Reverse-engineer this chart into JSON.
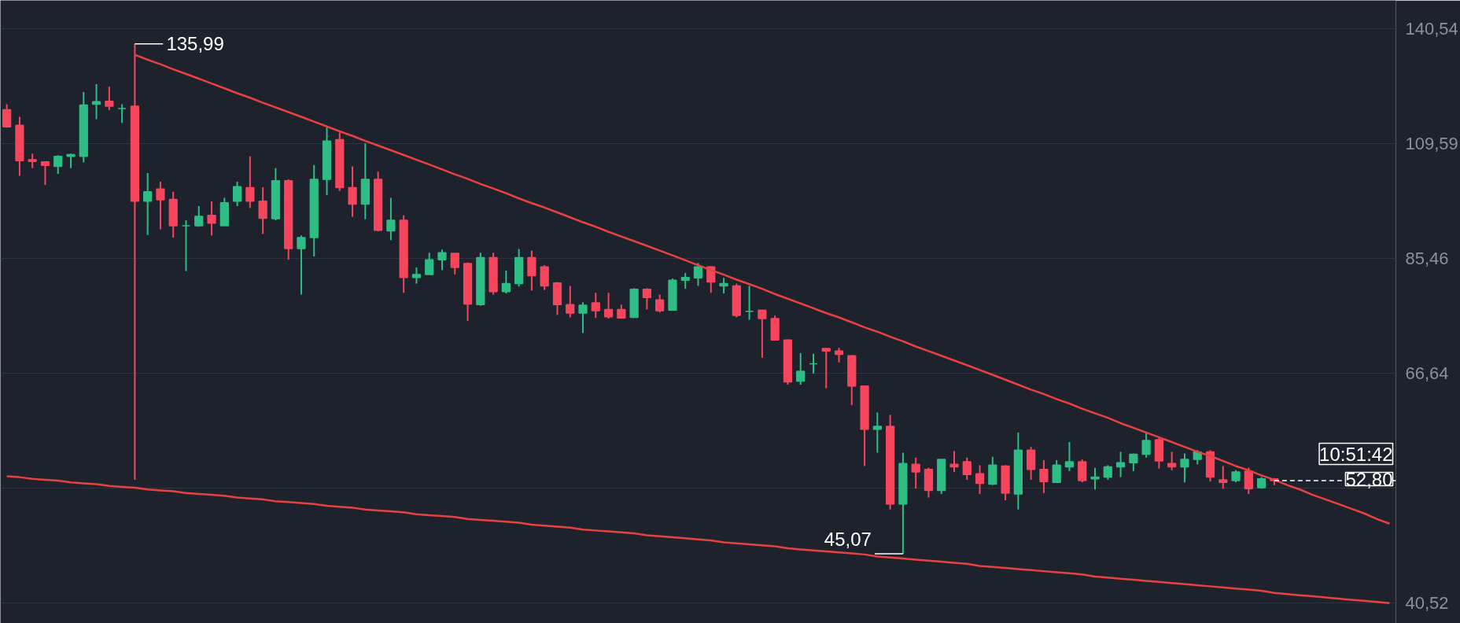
{
  "chart_data": {
    "type": "candlestick",
    "categories": [
      null,
      null,
      null,
      null,
      null,
      null,
      null,
      null,
      null,
      null,
      null,
      null,
      null,
      null,
      null,
      null,
      null,
      null,
      null,
      null,
      null,
      null,
      null,
      null,
      null,
      null,
      null,
      null,
      null,
      null,
      null,
      null,
      null,
      null,
      null,
      null,
      null,
      null,
      null,
      null,
      null,
      null,
      null,
      null,
      null,
      null,
      null,
      null,
      null,
      null,
      null,
      null,
      null,
      null,
      null,
      null,
      null,
      null,
      null,
      null,
      null,
      null,
      null,
      null,
      null,
      null,
      null,
      null,
      null,
      null,
      null,
      null,
      null,
      null,
      null,
      null,
      null,
      null,
      null,
      null,
      null,
      null,
      null,
      null,
      null,
      null,
      null,
      null,
      null,
      null,
      null,
      null,
      null,
      null,
      null,
      null,
      null,
      null,
      null,
      null,
      null,
      null,
      null,
      null,
      null,
      null,
      null,
      null,
      null
    ],
    "colors": [
      "#f6465d",
      "#f6465d",
      "#f6465d",
      "#f6465d",
      "#2ebd85",
      "#2ebd85",
      "#2ebd85",
      "#2ebd85",
      "#f6465d",
      "#2ebd85",
      "#f6465d",
      "#2ebd85",
      "#f6465d",
      "#f6465d",
      "#2ebd85",
      "#2ebd85",
      "#f6465d",
      "#2ebd85",
      "#2ebd85",
      "#f6465d",
      "#f6465d",
      "#2ebd85",
      "#f6465d",
      "#2ebd85",
      "#2ebd85",
      "#2ebd85",
      "#f6465d",
      "#f6465d",
      "#2ebd85",
      "#f6465d",
      "#2ebd85",
      "#f6465d",
      "#2ebd85",
      "#2ebd85",
      "#2ebd85",
      "#f6465d",
      "#f6465d",
      "#2ebd85",
      "#f6465d",
      "#2ebd85",
      "#2ebd85",
      "#f6465d",
      "#f6465d",
      "#f6465d",
      "#f6465d",
      "#2ebd85",
      "#f6465d",
      "#f6465d",
      "#f6465d",
      "#2ebd85",
      "#f6465d",
      "#f6465d",
      "#2ebd85",
      "#2ebd85",
      "#2ebd85",
      "#f6465d",
      "#2ebd85",
      "#f6465d",
      "#2ebd85",
      "#f6465d",
      "#f6465d",
      "#f6465d",
      "#2ebd85",
      "#2ebd85",
      "#f6465d",
      "#f6465d",
      "#f6465d",
      "#f6465d",
      "#2ebd85",
      "#f6465d",
      "#2ebd85",
      "#f6465d",
      "#f6465d",
      "#2ebd85",
      "#f6465d",
      "#f6465d",
      "#f6465d",
      "#2ebd85",
      "#f6465d",
      "#2ebd85",
      "#f6465d",
      "#f6465d",
      "#2ebd85",
      "#2ebd85",
      "#f6465d",
      "#2ebd85",
      "#2ebd85",
      "#2ebd85",
      "#2ebd85",
      "#2ebd85",
      "#f6465d",
      "#f6465d",
      "#2ebd85",
      "#2ebd85",
      "#f6465d",
      "#f6465d",
      "#2ebd85",
      "#f6465d",
      "#2ebd85",
      "#f6465d",
      null,
      null,
      null,
      null,
      null,
      null,
      null,
      null,
      null
    ],
    "ohlc": [
      [
        117.9,
        119.3,
        113.4,
        113.6
      ],
      [
        114.0,
        116.1,
        102.2,
        105.6
      ],
      [
        105.8,
        107.2,
        103.9,
        105.4
      ],
      [
        105.3,
        105.4,
        100.2,
        104.5
      ],
      [
        104.3,
        106.8,
        102.6,
        106.6
      ],
      [
        106.6,
        107.2,
        103.9,
        107.0
      ],
      [
        106.6,
        122.5,
        105.2,
        119.1
      ],
      [
        119.3,
        124.6,
        115.5,
        120.0
      ],
      [
        120.1,
        123.9,
        117.8,
        118.8
      ],
      [
        118.2,
        119.3,
        114.6,
        118.2
      ],
      [
        118.8,
        135.99,
        52.9,
        96.7
      ],
      [
        96.7,
        102.8,
        89.9,
        98.7
      ],
      [
        99.3,
        100.9,
        91.0,
        97.0
      ],
      [
        97.1,
        98.7,
        89.4,
        91.7
      ],
      [
        91.7,
        92.8,
        83.1,
        91.7
      ],
      [
        91.7,
        95.7,
        91.5,
        93.6
      ],
      [
        93.8,
        96.7,
        89.8,
        92.2
      ],
      [
        91.7,
        97.4,
        91.7,
        96.4
      ],
      [
        96.7,
        100.9,
        95.7,
        99.8
      ],
      [
        99.6,
        106.6,
        95.3,
        96.7
      ],
      [
        96.7,
        99.7,
        90.1,
        93.2
      ],
      [
        93.1,
        103.9,
        92.8,
        101.1
      ],
      [
        101.1,
        101.4,
        85.2,
        87.3
      ],
      [
        87.3,
        89.8,
        79.0,
        89.4
      ],
      [
        89.4,
        104.6,
        85.8,
        101.4
      ],
      [
        101.4,
        113.4,
        98.0,
        110.2
      ],
      [
        110.5,
        112.2,
        98.9,
        99.6
      ],
      [
        99.6,
        104.3,
        93.5,
        96.1
      ],
      [
        96.1,
        109.6,
        93.0,
        101.4
      ],
      [
        101.4,
        103.1,
        90.6,
        90.8
      ],
      [
        90.7,
        97.4,
        88.9,
        92.8
      ],
      [
        92.8,
        93.8,
        79.3,
        82.0
      ],
      [
        82.0,
        83.8,
        80.9,
        82.5
      ],
      [
        82.5,
        86.5,
        82.5,
        85.2
      ],
      [
        85.2,
        87.1,
        83.3,
        86.5
      ],
      [
        86.4,
        86.4,
        82.5,
        83.8
      ],
      [
        84.5,
        84.7,
        74.6,
        77.4
      ],
      [
        77.3,
        86.5,
        77.1,
        85.6
      ],
      [
        85.6,
        86.5,
        79.0,
        79.5
      ],
      [
        79.5,
        83.2,
        79.2,
        80.9
      ],
      [
        80.9,
        87.2,
        80.4,
        85.6
      ],
      [
        85.6,
        86.9,
        79.7,
        82.3
      ],
      [
        83.9,
        84.2,
        79.8,
        80.5
      ],
      [
        81.0,
        81.2,
        75.6,
        77.3
      ],
      [
        77.3,
        80.5,
        75.2,
        75.9
      ],
      [
        75.9,
        77.7,
        72.7,
        77.2
      ],
      [
        77.6,
        79.3,
        75.1,
        76.3
      ],
      [
        76.5,
        79.3,
        75.0,
        75.3
      ],
      [
        76.5,
        77.3,
        75.0,
        75.1
      ],
      [
        75.2,
        80.1,
        75.1,
        79.9
      ],
      [
        79.9,
        80.1,
        76.5,
        78.5
      ],
      [
        78.1,
        79.0,
        76.0,
        76.3
      ],
      [
        76.4,
        81.8,
        76.4,
        81.5
      ],
      [
        81.5,
        82.8,
        80.0,
        82.0
      ],
      [
        81.9,
        84.6,
        80.5,
        83.9
      ],
      [
        83.9,
        84.0,
        79.3,
        81.2
      ],
      [
        80.5,
        81.9,
        79.2,
        80.9
      ],
      [
        80.5,
        80.9,
        75.2,
        75.5
      ],
      [
        76.2,
        80.5,
        74.8,
        76.2
      ],
      [
        76.4,
        76.4,
        68.9,
        75.0
      ],
      [
        75.0,
        75.5,
        71.5,
        71.6
      ],
      [
        71.6,
        71.7,
        65.0,
        65.4
      ],
      [
        65.5,
        69.6,
        65.0,
        66.9
      ],
      [
        68.0,
        69.5,
        66.6,
        68.0
      ],
      [
        70.3,
        70.3,
        64.5,
        69.9
      ],
      [
        69.9,
        70.4,
        68.2,
        69.4
      ],
      [
        69.2,
        69.3,
        62.2,
        64.8
      ],
      [
        64.8,
        64.8,
        54.5,
        59.0
      ],
      [
        59.0,
        61.2,
        56.1,
        59.4
      ],
      [
        59.4,
        60.9,
        49.6,
        50.2
      ],
      [
        50.2,
        56.1,
        45.07,
        54.8
      ],
      [
        54.7,
        55.5,
        51.9,
        53.8
      ],
      [
        54.1,
        54.3,
        50.9,
        51.7
      ],
      [
        51.7,
        55.3,
        51.3,
        55.3
      ],
      [
        54.7,
        56.3,
        53.8,
        54.4
      ],
      [
        55.0,
        55.5,
        52.9,
        53.5
      ],
      [
        53.6,
        54.6,
        51.3,
        52.5
      ],
      [
        52.4,
        55.6,
        52.3,
        54.6
      ],
      [
        54.5,
        54.6,
        50.6,
        51.4
      ],
      [
        51.3,
        58.6,
        49.6,
        56.4
      ],
      [
        56.4,
        56.8,
        52.9,
        54.1
      ],
      [
        54.1,
        55.2,
        51.4,
        52.7
      ],
      [
        52.6,
        55.2,
        52.6,
        54.6
      ],
      [
        54.4,
        57.4,
        53.9,
        55.0
      ],
      [
        55.0,
        55.3,
        52.6,
        52.8
      ],
      [
        53.0,
        54.3,
        51.8,
        53.2
      ],
      [
        53.2,
        54.6,
        52.9,
        54.4
      ],
      [
        54.4,
        56.2,
        53.2,
        54.9
      ],
      [
        54.9,
        56.0,
        53.9,
        55.9
      ],
      [
        55.9,
        58.7,
        55.5,
        57.6
      ],
      [
        57.7,
        58.0,
        54.2,
        55.1
      ],
      [
        54.8,
        56.2,
        54.0,
        54.4
      ],
      [
        54.4,
        56.0,
        52.6,
        55.3
      ],
      [
        55.3,
        56.4,
        54.7,
        56.2
      ],
      [
        56.2,
        56.4,
        52.7,
        53.2
      ],
      [
        52.9,
        54.5,
        51.9,
        52.6
      ],
      [
        52.8,
        54.0,
        52.6,
        53.8
      ],
      [
        53.9,
        54.3,
        51.3,
        51.9
      ],
      [
        52.0,
        53.2,
        51.9,
        53.0
      ],
      [
        53.0,
        53.1,
        52.3,
        52.8
      ],
      null,
      null,
      null,
      null,
      null,
      null,
      null,
      null,
      null
    ],
    "series": [
      {
        "type": "line",
        "color": "#e84142",
        "values": [
          null,
          null,
          null,
          null,
          null,
          null,
          null,
          null,
          null,
          null,
          132.8,
          131.4,
          130.1,
          128.7,
          127.4,
          126.1,
          124.8,
          123.5,
          122.2,
          121.0,
          119.7,
          118.5,
          117.3,
          116.1,
          114.9,
          113.7,
          112.5,
          111.4,
          110.2,
          109.1,
          108.0,
          106.9,
          105.8,
          104.7,
          103.6,
          102.5,
          101.5,
          100.4,
          99.4,
          98.4,
          97.3,
          96.3,
          95.4,
          94.4,
          93.4,
          92.4,
          91.5,
          90.5,
          89.6,
          88.7,
          87.8,
          86.9,
          86.0,
          85.1,
          84.2,
          83.3,
          82.5,
          81.6,
          80.8,
          80.0,
          79.1,
          78.3,
          77.5,
          76.7,
          75.9,
          75.2,
          74.4,
          73.6,
          72.9,
          72.1,
          71.4,
          70.6,
          69.9,
          69.2,
          68.5,
          67.8,
          67.1,
          66.4,
          65.7,
          65.0,
          64.3,
          63.7,
          63.0,
          62.4,
          61.7,
          61.1,
          60.5,
          59.8,
          59.2,
          58.6,
          58.0,
          57.4,
          56.8,
          56.2,
          55.7,
          55.1,
          54.5,
          54.0,
          53.4,
          52.9,
          52.3,
          51.8,
          51.2,
          50.7,
          50.2,
          49.7,
          49.2,
          48.6,
          48.1
        ]
      },
      {
        "type": "line",
        "color": "#e84142",
        "values": [
          53.3,
          53.2,
          53.0,
          52.9,
          52.8,
          52.6,
          52.5,
          52.4,
          52.2,
          52.1,
          52.0,
          51.8,
          51.7,
          51.6,
          51.4,
          51.3,
          51.2,
          51.1,
          50.9,
          50.8,
          50.7,
          50.5,
          50.4,
          50.3,
          50.2,
          50.0,
          49.9,
          49.8,
          49.6,
          49.5,
          49.4,
          49.3,
          49.1,
          49.0,
          48.9,
          48.8,
          48.6,
          48.5,
          48.4,
          48.3,
          48.2,
          48.0,
          47.9,
          47.8,
          47.7,
          47.5,
          47.4,
          47.3,
          47.2,
          47.1,
          46.9,
          46.8,
          46.7,
          46.6,
          46.5,
          46.4,
          46.2,
          46.1,
          46.0,
          45.9,
          45.8,
          45.6,
          45.5,
          45.4,
          45.3,
          45.2,
          45.1,
          45.0,
          44.8,
          44.7,
          44.6,
          44.5,
          44.4,
          44.3,
          44.2,
          44.1,
          43.9,
          43.8,
          43.7,
          43.6,
          43.5,
          43.4,
          43.3,
          43.2,
          43.1,
          42.9,
          42.8,
          42.7,
          42.6,
          42.5,
          42.4,
          42.3,
          42.2,
          42.1,
          42.0,
          41.9,
          41.8,
          41.7,
          41.6,
          41.4,
          41.3,
          41.2,
          41.1,
          41.0,
          40.9,
          40.8,
          40.7,
          40.6,
          40.5
        ]
      }
    ],
    "log": true,
    "ylim": [
      38.76,
      149.4
    ],
    "yticks": [
      {
        "value": 140.54,
        "label": "140,54"
      },
      {
        "value": 109.59,
        "label": "109,59"
      },
      {
        "value": 85.46,
        "label": "85,46"
      },
      {
        "value": 66.64,
        "label": "66,64"
      },
      {
        "value": 51.97,
        "label": null
      },
      {
        "value": 40.52,
        "label": "40,52"
      }
    ],
    "tick_labels": "y",
    "grid": "y",
    "ref_lines": [
      {
        "axis": "y",
        "value": 52.8,
        "label": "52,80",
        "color": "#ffffff",
        "line_style": "dashed"
      }
    ],
    "annotations": [
      "135,99",
      "45,07",
      "10:51:42"
    ]
  }
}
